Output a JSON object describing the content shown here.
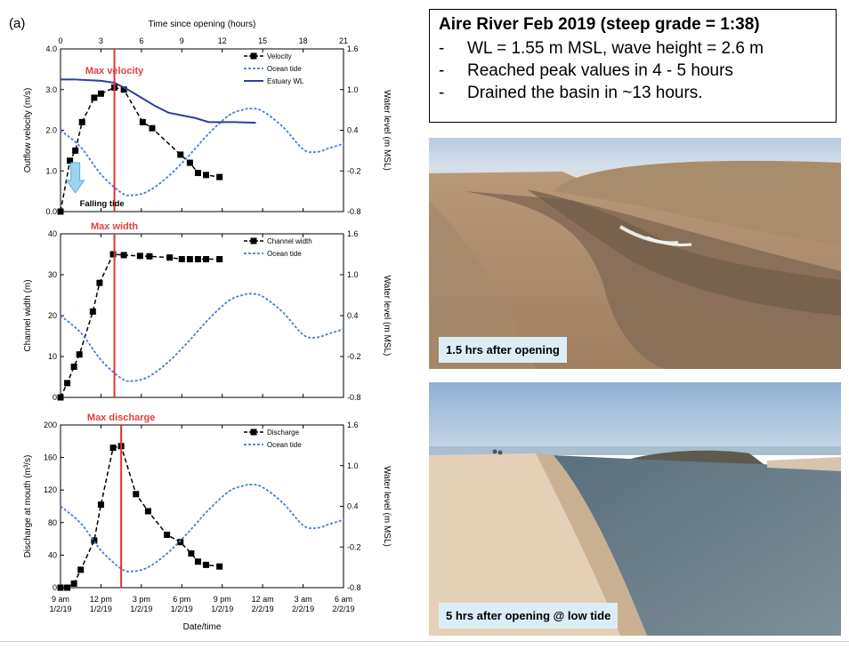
{
  "figure_label": "(a)",
  "colors": {
    "data_series": "#000000",
    "ocean_tide": "#4a7fd0",
    "estuary_wl": "#2f3c9e",
    "marker_line": "#e83030",
    "marker_label": "#e04040",
    "falling_arrow": "#9fd3f0",
    "caption_bg": "#dbeef7"
  },
  "chart_data": [
    {
      "type": "line",
      "panel": "velocity",
      "top_axis_label": "Time since opening (hours)",
      "top_ticks": [
        "0",
        "3",
        "6",
        "9",
        "12",
        "15",
        "18",
        "21"
      ],
      "x_range": [
        0,
        21
      ],
      "ylabel": "Outflow velocity (m/s)",
      "ylim": [
        0,
        4.0
      ],
      "yticks": [
        "0.0",
        "1.0",
        "2.0",
        "3.0",
        "4.0"
      ],
      "y2label": "Water level (m MSL)",
      "y2lim": [
        -0.8,
        1.6
      ],
      "y2ticks": [
        "-0.8",
        "-0.2",
        "0.4",
        "1.0",
        "1.6"
      ],
      "marker_x": 4,
      "marker_label": "Max velocity",
      "annotation": "Falling tide",
      "legend": [
        "Velocity",
        "Ocean tide",
        "Estuary WL"
      ],
      "series": [
        {
          "name": "Velocity",
          "axis": "left",
          "style": "dashed-square",
          "x": [
            0,
            0.7,
            1.1,
            1.6,
            2.5,
            3.0,
            4.0,
            4.7,
            6.1,
            6.8,
            8.9,
            9.6,
            10.2,
            10.8,
            11.8
          ],
          "y": [
            0,
            1.25,
            1.5,
            2.2,
            2.8,
            2.9,
            3.05,
            3.0,
            2.2,
            2.05,
            1.4,
            1.2,
            0.95,
            0.9,
            0.85
          ]
        },
        {
          "name": "Ocean tide",
          "axis": "right",
          "style": "dotted",
          "x": [
            0,
            1.5,
            3,
            4.5,
            5.3,
            6.5,
            8,
            9.5,
            11,
            12.5,
            13.5,
            14.2,
            15,
            16.5,
            18,
            19,
            20,
            21
          ],
          "y": [
            0.4,
            0.15,
            -0.25,
            -0.52,
            -0.56,
            -0.5,
            -0.28,
            0.02,
            0.35,
            0.62,
            0.7,
            0.72,
            0.68,
            0.45,
            0.12,
            0.08,
            0.14,
            0.2
          ]
        },
        {
          "name": "Estuary WL",
          "axis": "right",
          "style": "solid",
          "x": [
            0,
            1,
            2,
            3,
            4,
            5,
            6,
            7,
            8,
            9,
            10,
            11,
            12,
            13,
            14.5
          ],
          "y": [
            1.15,
            1.15,
            1.14,
            1.13,
            1.1,
            1.0,
            0.88,
            0.76,
            0.66,
            0.62,
            0.58,
            0.52,
            0.52,
            0.52,
            0.51
          ]
        }
      ]
    },
    {
      "type": "line",
      "panel": "width",
      "x_range": [
        0,
        21
      ],
      "ylabel": "Channel width (m)",
      "ylim": [
        0,
        40
      ],
      "yticks": [
        "0",
        "10",
        "20",
        "30",
        "40"
      ],
      "y2label": "Water level (m MSL)",
      "y2lim": [
        -0.8,
        1.6
      ],
      "y2ticks": [
        "-0.8",
        "-0.2",
        "0.4",
        "1.0",
        "1.6"
      ],
      "marker_x": 4,
      "marker_label": "Max width",
      "legend": [
        "Channel width",
        "Ocean tide"
      ],
      "series": [
        {
          "name": "Channel width",
          "axis": "left",
          "style": "dashed-square",
          "x": [
            0,
            0.5,
            1,
            1.4,
            2.4,
            2.9,
            3.9,
            4.7,
            5.9,
            6.6,
            8.1,
            9.0,
            9.6,
            10.2,
            10.8,
            11.8
          ],
          "y": [
            0,
            3.5,
            7.5,
            10.5,
            21,
            28,
            35,
            34.8,
            34.6,
            34.5,
            34.2,
            33.8,
            33.8,
            33.8,
            33.8,
            33.8
          ]
        },
        {
          "name": "Ocean tide",
          "axis": "right",
          "style": "dotted",
          "x": [
            0,
            1.5,
            3,
            4.5,
            5.3,
            6.5,
            8,
            9.5,
            11,
            12.5,
            13.5,
            14.2,
            15,
            16.5,
            18,
            19,
            20,
            21
          ],
          "y": [
            0.4,
            0.15,
            -0.25,
            -0.52,
            -0.56,
            -0.5,
            -0.28,
            0.02,
            0.35,
            0.62,
            0.7,
            0.72,
            0.68,
            0.45,
            0.12,
            0.08,
            0.14,
            0.2
          ]
        }
      ]
    },
    {
      "type": "line",
      "panel": "discharge",
      "x_range": [
        0,
        21
      ],
      "xlabel": "Date/time",
      "bottom_ticks": [
        [
          "9 am",
          "1/2/19"
        ],
        [
          "12 pm",
          "1/2/19"
        ],
        [
          "3 pm",
          "1/2/19"
        ],
        [
          "6 pm",
          "1/2/19"
        ],
        [
          "9 pm",
          "1/2/19"
        ],
        [
          "12 am",
          "2/2/19"
        ],
        [
          "3 am",
          "2/2/19"
        ],
        [
          "6 am",
          "2/2/19"
        ]
      ],
      "ylabel": "Discharge at mouth (m³/s)",
      "ylim": [
        0,
        200
      ],
      "yticks": [
        "0",
        "40",
        "80",
        "120",
        "160",
        "200"
      ],
      "y2label": "Water level (m MSL)",
      "y2lim": [
        -0.8,
        1.6
      ],
      "y2ticks": [
        "-0.8",
        "-0.2",
        "0.4",
        "1.0",
        "1.6"
      ],
      "marker_x": 4.5,
      "marker_label": "Max discharge",
      "legend": [
        "Discharge",
        "Ocean tide"
      ],
      "series": [
        {
          "name": "Discharge",
          "axis": "left",
          "style": "dashed-square",
          "x": [
            0,
            0.5,
            1.0,
            1.5,
            2.5,
            3.0,
            3.9,
            4.5,
            5.6,
            6.5,
            7.9,
            8.9,
            9.7,
            10.2,
            10.8,
            11.8
          ],
          "y": [
            0,
            0,
            5,
            22,
            58,
            102,
            172,
            174,
            115,
            94,
            65,
            56,
            42,
            32,
            28,
            26
          ]
        },
        {
          "name": "Ocean tide",
          "axis": "right",
          "style": "dotted",
          "x": [
            0,
            1.5,
            3,
            4.5,
            5.3,
            6.5,
            8,
            9.5,
            11,
            12.5,
            13.5,
            14.2,
            15,
            16.5,
            18,
            19,
            20,
            21
          ],
          "y": [
            0.4,
            0.15,
            -0.25,
            -0.52,
            -0.56,
            -0.5,
            -0.28,
            0.02,
            0.35,
            0.62,
            0.7,
            0.72,
            0.68,
            0.45,
            0.12,
            0.08,
            0.14,
            0.2
          ]
        }
      ]
    }
  ],
  "info_box": {
    "title": "Aire River Feb 2019 (steep grade = 1:38)",
    "bullets": [
      "WL = 1.55 m MSL, wave height = 2.6 m",
      "Reached peak values in 4 - 5 hours",
      "Drained the basin in ~13 hours."
    ]
  },
  "photos": [
    {
      "caption": "1.5 hrs after opening"
    },
    {
      "caption": "5 hrs after opening @ low tide"
    }
  ]
}
